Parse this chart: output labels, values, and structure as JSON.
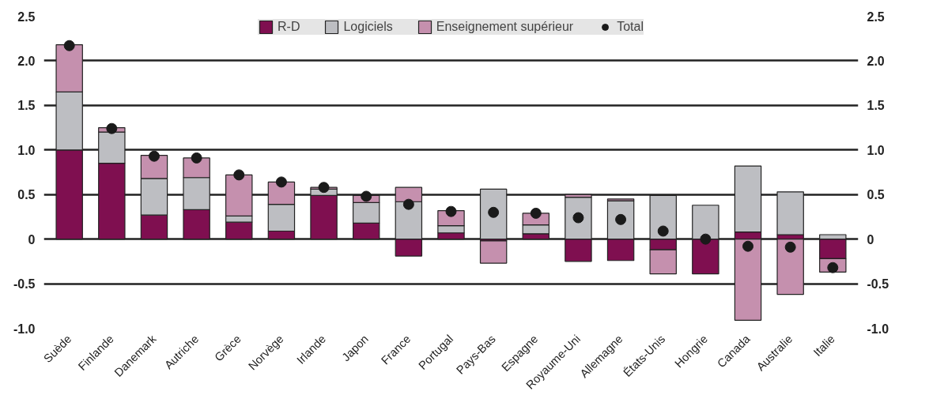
{
  "chart_data": {
    "type": "bar",
    "stacked": true,
    "categories": [
      "Suède",
      "Finlande",
      "Danemark",
      "Autriche",
      "Grèce",
      "Norvège",
      "Irlande",
      "Japon",
      "France",
      "Portugal",
      "Pays-Bas",
      "Espagne",
      "Royaume-Uni",
      "Allemagne",
      "États-Unis",
      "Hongrie",
      "Canada",
      "Australie",
      "Italie"
    ],
    "series": [
      {
        "name": "R-D",
        "color": "#7f0f50",
        "values": [
          1.0,
          0.85,
          0.27,
          0.33,
          0.19,
          0.09,
          0.49,
          0.18,
          -0.19,
          0.07,
          -0.02,
          0.06,
          -0.25,
          -0.24,
          -0.12,
          -0.39,
          0.08,
          0.05,
          -0.22
        ]
      },
      {
        "name": "Logiciels",
        "color": "#bdbec2",
        "values": [
          0.65,
          0.35,
          0.41,
          0.36,
          0.07,
          0.3,
          0.07,
          0.23,
          0.42,
          0.08,
          0.56,
          0.1,
          0.47,
          0.43,
          0.49,
          0.38,
          0.74,
          0.48,
          0.05
        ]
      },
      {
        "name": "Enseignement supérieur",
        "color": "#c590ae",
        "values": [
          0.53,
          0.05,
          0.26,
          0.22,
          0.46,
          0.25,
          0.02,
          0.08,
          0.16,
          0.17,
          -0.25,
          0.13,
          0.03,
          0.02,
          -0.27,
          null,
          -0.91,
          -0.62,
          -0.15
        ]
      },
      {
        "name": "Total",
        "type": "scatter",
        "color": "#1a1a1a",
        "values": [
          2.17,
          1.24,
          0.93,
          0.91,
          0.72,
          0.64,
          0.58,
          0.48,
          0.39,
          0.31,
          0.3,
          0.29,
          0.24,
          0.22,
          0.09,
          0.0,
          -0.08,
          -0.09,
          -0.32
        ]
      }
    ],
    "ylim": [
      -1.0,
      2.5
    ],
    "yticks": [
      {
        "value": -1.0,
        "label": "-1.0"
      },
      -0.5,
      0,
      0.5,
      {
        "value": 1.0,
        "label": "1.0"
      },
      1.5,
      {
        "value": 2.0,
        "label": "2.0"
      },
      2.5
    ],
    "y2lim": [
      -1.0,
      2.5
    ],
    "y2ticks": [
      {
        "value": -1.0,
        "label": "-1.0"
      },
      -0.5,
      0,
      0.5,
      {
        "value": 1.0,
        "label": "1.0"
      },
      1.5,
      {
        "value": 2.0,
        "label": "2.0"
      },
      2.5
    ],
    "grid": "y",
    "legend": "top",
    "marker": "circle"
  }
}
